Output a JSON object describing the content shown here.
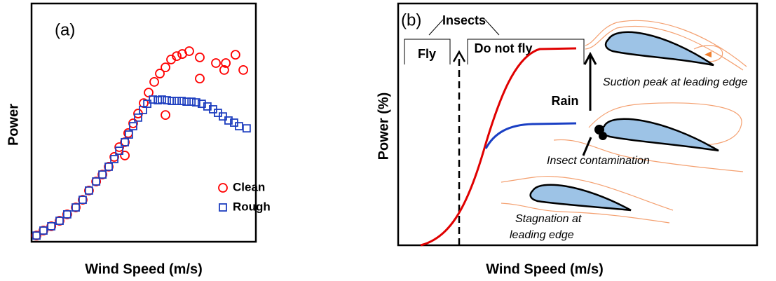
{
  "chart_data": {
    "type": "scatter",
    "panel_label": "(a)",
    "x_label": "Wind Speed (m/s)",
    "y_label": "Power",
    "xlim": [
      0,
      100
    ],
    "ylim": [
      0,
      100
    ],
    "legend": "lower right",
    "series": [
      {
        "name": "Clean",
        "color": "#ff0000",
        "marker": "circle",
        "x": [
          2.2,
          5.3,
          8.8,
          12.5,
          15.9,
          19.7,
          22.8,
          25.6,
          28.8,
          31.6,
          34.4,
          36.9,
          39.1,
          41.6,
          41.6,
          43.1,
          45.3,
          47.5,
          50.0,
          52.2,
          54.7,
          57.2,
          59.7,
          59.7,
          62.2,
          64.7,
          67.2,
          70.3,
          75.0,
          75.0,
          82.2,
          86.6,
          85.9,
          90.9,
          94.4
        ],
        "values": [
          2.6,
          4.7,
          6.5,
          8.8,
          11.5,
          14.4,
          17.6,
          21.5,
          25.3,
          28.2,
          31.5,
          35.6,
          39.7,
          41.8,
          36.2,
          45.6,
          49.7,
          53.8,
          58.2,
          62.6,
          67.1,
          70.6,
          73.2,
          53.2,
          76.5,
          77.9,
          78.8,
          80.0,
          77.4,
          68.5,
          75.0,
          75.0,
          72.1,
          78.5,
          72.1
        ]
      },
      {
        "name": "Rough",
        "color": "#1f3fbf",
        "marker": "square",
        "x": [
          2.2,
          5.3,
          8.8,
          12.5,
          15.9,
          19.7,
          22.8,
          25.6,
          28.8,
          31.6,
          34.4,
          36.9,
          39.1,
          41.6,
          43.4,
          45.3,
          47.5,
          49.7,
          51.6,
          54.1,
          56.3,
          58.1,
          60.3,
          62.5,
          64.7,
          66.9,
          69.1,
          71.3,
          73.4,
          75.9,
          78.4,
          80.9,
          83.1,
          85.3,
          87.8,
          90.3,
          92.5,
          95.9
        ],
        "values": [
          2.6,
          4.7,
          6.5,
          8.8,
          11.5,
          14.4,
          17.6,
          21.5,
          25.3,
          28.2,
          31.5,
          34.7,
          38.2,
          41.8,
          45.0,
          48.5,
          52.1,
          55.3,
          57.9,
          59.7,
          59.4,
          59.7,
          59.4,
          59.1,
          59.1,
          59.1,
          58.8,
          58.8,
          58.5,
          57.9,
          56.8,
          55.6,
          54.1,
          52.6,
          50.9,
          50.0,
          48.5,
          47.6
        ]
      }
    ]
  },
  "diagram": {
    "panel_label": "(b)",
    "x_label": "Wind Speed (m/s)",
    "y_label": "Power (%)",
    "insects": "Insects",
    "fly": "Fly",
    "do_not_fly": "Do not fly",
    "rain": "Rain",
    "suction": "Suction peak at leading edge",
    "contamination": "Insect contamination",
    "stagnation": [
      "Stagnation at",
      "leading edge"
    ]
  }
}
